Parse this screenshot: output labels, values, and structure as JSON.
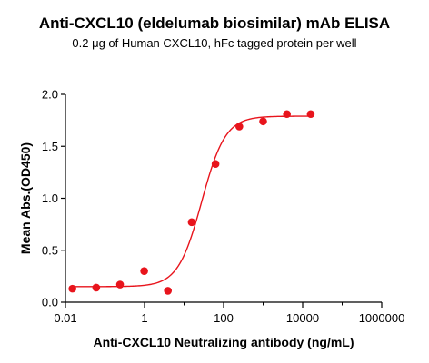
{
  "title": "Anti-CXCL10 (eldelumab biosimilar) mAb ELISA",
  "subtitle": "0.2 μg of Human CXCL10, hFc tagged protein per well",
  "colors": {
    "series": "#e8141c",
    "axis": "#000000"
  },
  "chart_data": {
    "type": "scatter",
    "xlabel": "Anti-CXCL10 Neutralizing antibody (ng/mL)",
    "ylabel": "Mean Abs.(OD450)",
    "xscale": "log",
    "xlim": [
      0.01,
      1000000
    ],
    "ylim": [
      0,
      2.0
    ],
    "xticks": [
      0.01,
      1,
      100,
      10000,
      1000000
    ],
    "xtick_labels": [
      "0.01",
      "1",
      "100",
      "10000",
      "1000000"
    ],
    "yticks": [
      0.0,
      0.5,
      1.0,
      1.5,
      2.0
    ],
    "ytick_labels": [
      "0.0",
      "0.5",
      "1.0",
      "1.5",
      "2.0"
    ],
    "grid": false,
    "series": [
      {
        "x": [
          0.015,
          0.06,
          0.24,
          0.98,
          3.9,
          15.6,
          62.5,
          250,
          1000,
          4000,
          16000
        ],
        "y": [
          0.13,
          0.14,
          0.17,
          0.3,
          0.11,
          0.77,
          1.33,
          1.69,
          1.74,
          1.81,
          1.81
        ]
      }
    ],
    "fit": {
      "model": "4PL",
      "bottom": 0.15,
      "top": 1.79,
      "ec50": 28,
      "hill": 1.45
    }
  }
}
